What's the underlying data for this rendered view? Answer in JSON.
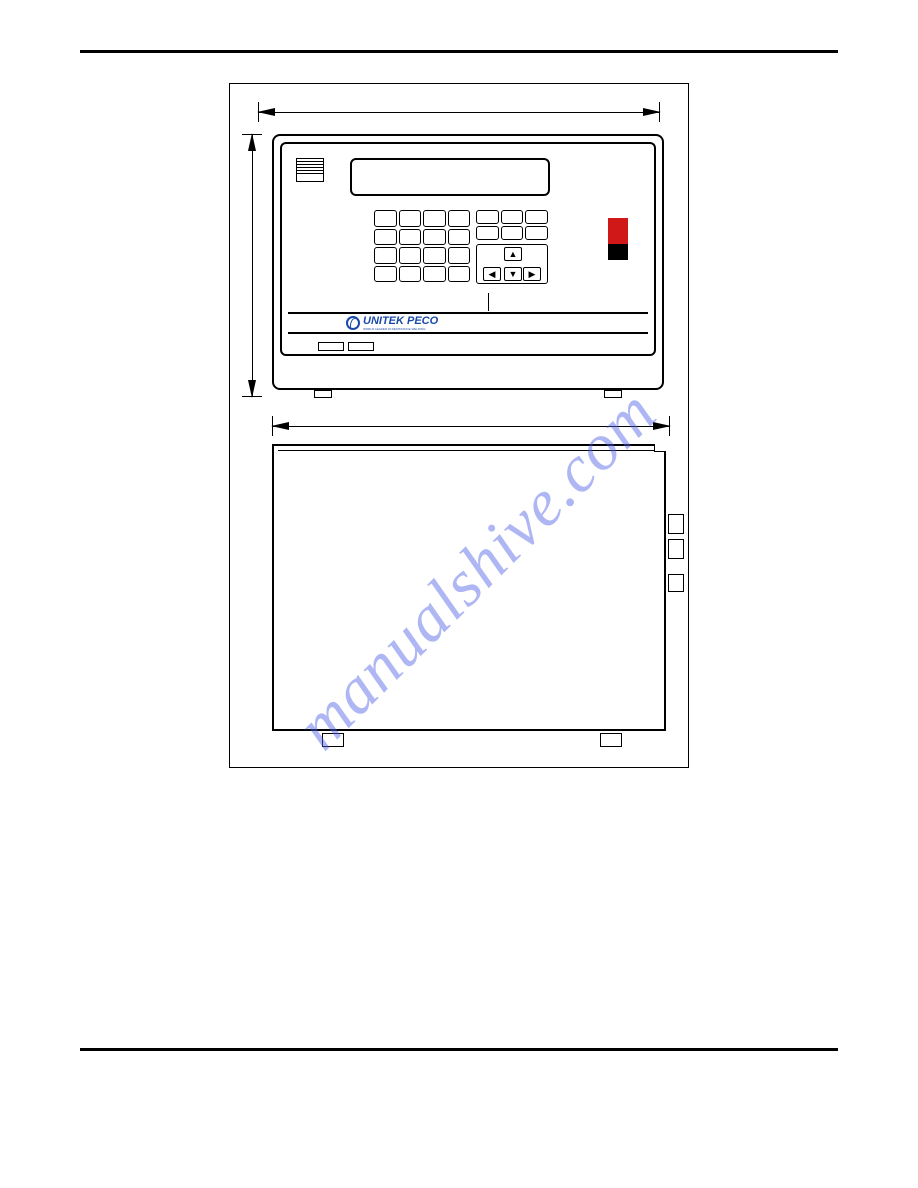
{
  "watermark": {
    "text": "manualshive.com",
    "color": "rgba(76,96,230,0.45)"
  },
  "device": {
    "logo_brand": "UNITEK PECO",
    "logo_tagline": "WORLD LEADER IN RESISTANCE WELDING",
    "logo_color": "#1a4aa8",
    "button_color_red": "#d01818",
    "arrow_up": "▲",
    "arrow_down": "▼",
    "arrow_left": "◀",
    "arrow_right": "▶"
  },
  "diagram": {
    "frame_border": "#000000",
    "background": "#ffffff"
  }
}
